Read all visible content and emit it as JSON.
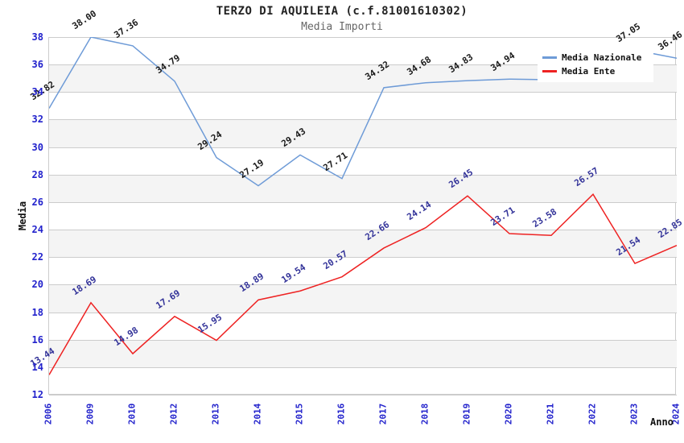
{
  "header": {
    "title": "TERZO DI AQUILEIA (c.f.81001610302)",
    "subtitle": "Media Importi"
  },
  "axes": {
    "y_label": "Media",
    "x_label": "Anno",
    "y_ticks": [
      12,
      14,
      16,
      18,
      20,
      22,
      24,
      26,
      28,
      30,
      32,
      34,
      36,
      38
    ]
  },
  "legend": {
    "items": [
      {
        "label": "Media Nazionale",
        "color": "#6e9bd7"
      },
      {
        "label": "Media Ente",
        "color": "#ee2222"
      }
    ]
  },
  "chart_data": {
    "type": "line",
    "title": "TERZO DI AQUILEIA (c.f.81001610302)",
    "subtitle": "Media Importi",
    "xlabel": "Anno",
    "ylabel": "Media",
    "ylim": [
      12,
      38
    ],
    "grid": "horizontal",
    "legend_position": "top-right",
    "band_fill_between": [
      [
        14,
        16
      ],
      [
        18,
        20
      ],
      [
        22,
        24
      ],
      [
        26,
        28
      ],
      [
        30,
        32
      ],
      [
        34,
        36
      ]
    ],
    "categories": [
      "2006",
      "2009",
      "2010",
      "2012",
      "2013",
      "2014",
      "2015",
      "2016",
      "2017",
      "2018",
      "2019",
      "2020",
      "2021",
      "2022",
      "2023",
      "2024"
    ],
    "series": [
      {
        "name": "Media Nazionale",
        "color": "#6e9bd7",
        "label_color": "#1a1a1a",
        "values": [
          32.82,
          38.0,
          37.36,
          34.79,
          29.24,
          27.19,
          29.43,
          27.71,
          34.32,
          34.68,
          34.83,
          34.94,
          34.9,
          35.0,
          37.05,
          36.46
        ],
        "point_labels": [
          "32.82",
          "38.00",
          "37.36",
          "34.79",
          "29.24",
          "27.19",
          "29.43",
          "27.71",
          "34.32",
          "34.68",
          "34.83",
          "34.94",
          "",
          "",
          "37.05",
          "36.46"
        ],
        "labels_hidden_by_legend": [
          "2021",
          "2022"
        ]
      },
      {
        "name": "Media Ente",
        "color": "#ee2222",
        "label_color": "#333399",
        "values": [
          13.44,
          18.69,
          14.98,
          17.69,
          15.95,
          18.89,
          19.54,
          20.57,
          22.66,
          24.14,
          26.45,
          23.71,
          23.58,
          26.57,
          21.54,
          22.85
        ],
        "point_labels": [
          "13.44",
          "18.69",
          "14.98",
          "17.69",
          "15.95",
          "18.89",
          "19.54",
          "20.57",
          "22.66",
          "24.14",
          "26.45",
          "23.71",
          "23.58",
          "26.57",
          "21.54",
          "22.85"
        ]
      }
    ]
  },
  "colors": {
    "tick_label": "#2222cc",
    "grid": "#cccccc",
    "band": "#f4f4f4"
  }
}
